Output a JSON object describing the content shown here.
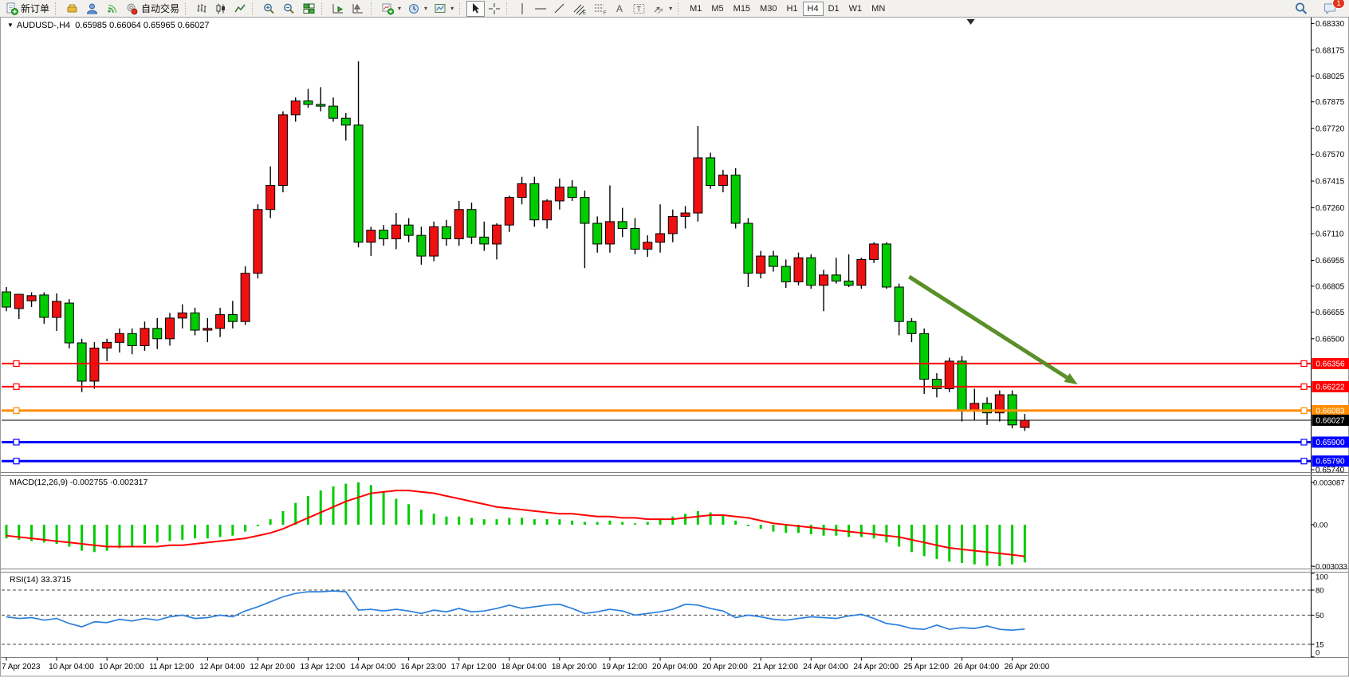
{
  "toolbar": {
    "new_order_label": "新订单",
    "autotrade_label": "自动交易",
    "timeframes": [
      "M1",
      "M5",
      "M15",
      "M30",
      "H1",
      "H4",
      "D1",
      "W1",
      "MN"
    ],
    "active_timeframe": "H4",
    "chat_badge": "1"
  },
  "window": {
    "symbol_period": "AUDUSD-,H4",
    "ohlc_text": "0.65985 0.66064 0.65965 0.66027"
  },
  "colors": {
    "bull": "#ee1111",
    "bear": "#00cc00",
    "wick": "#000000",
    "hline_red": "#ff0000",
    "hline_orange": "#ff8c00",
    "hline_blue": "#0000ff",
    "price_line": "#000000",
    "macd_hist": "#00cc00",
    "macd_signal": "#ff0000",
    "rsi_line": "#2a7fdc",
    "arrow": "#5a8f29",
    "toolbar_bg": "#f2f1ee",
    "panel_bg": "#ffffff"
  },
  "chart_data": {
    "type": "candlestick_with_indicators",
    "main": {
      "type": "candlestick",
      "convention": "red=bullish, green=bearish",
      "ohlc": [
        [
          0.66772,
          0.668,
          0.6666,
          0.66684
        ],
        [
          0.66675,
          0.6676,
          0.66615,
          0.66758
        ],
        [
          0.6672,
          0.6677,
          0.66684,
          0.6675
        ],
        [
          0.66754,
          0.6677,
          0.66587,
          0.66624
        ],
        [
          0.66624,
          0.66763,
          0.66545,
          0.66717
        ],
        [
          0.66707,
          0.6673,
          0.66444,
          0.66476
        ],
        [
          0.66476,
          0.665,
          0.6619,
          0.66254
        ],
        [
          0.66254,
          0.6648,
          0.6621,
          0.66446
        ],
        [
          0.66446,
          0.665,
          0.6637,
          0.66479
        ],
        [
          0.66479,
          0.6656,
          0.6642,
          0.6653
        ],
        [
          0.6653,
          0.6656,
          0.6641,
          0.6646
        ],
        [
          0.6646,
          0.666,
          0.6643,
          0.6656
        ],
        [
          0.6656,
          0.6662,
          0.6644,
          0.665
        ],
        [
          0.665,
          0.6665,
          0.6646,
          0.6662
        ],
        [
          0.6662,
          0.667,
          0.6656,
          0.6665
        ],
        [
          0.6665,
          0.6668,
          0.6652,
          0.6655
        ],
        [
          0.6655,
          0.6662,
          0.6648,
          0.6656
        ],
        [
          0.6656,
          0.6668,
          0.6651,
          0.6664
        ],
        [
          0.6664,
          0.6672,
          0.6656,
          0.666
        ],
        [
          0.666,
          0.6692,
          0.6658,
          0.6688
        ],
        [
          0.6688,
          0.6728,
          0.6685,
          0.6725
        ],
        [
          0.6725,
          0.675,
          0.672,
          0.6739
        ],
        [
          0.6739,
          0.6782,
          0.6735,
          0.678
        ],
        [
          0.678,
          0.679,
          0.6776,
          0.6788
        ],
        [
          0.6788,
          0.6795,
          0.6784,
          0.6786
        ],
        [
          0.6786,
          0.6796,
          0.6782,
          0.6785
        ],
        [
          0.6785,
          0.679,
          0.6776,
          0.6778
        ],
        [
          0.6778,
          0.6781,
          0.6765,
          0.6774
        ],
        [
          0.6774,
          0.6811,
          0.6703,
          0.6706
        ],
        [
          0.6706,
          0.6715,
          0.6698,
          0.6713
        ],
        [
          0.6713,
          0.6716,
          0.6704,
          0.6708
        ],
        [
          0.6708,
          0.6723,
          0.6702,
          0.6716
        ],
        [
          0.6716,
          0.672,
          0.6706,
          0.671
        ],
        [
          0.671,
          0.6715,
          0.6693,
          0.6698
        ],
        [
          0.6698,
          0.6718,
          0.6695,
          0.6715
        ],
        [
          0.6715,
          0.6719,
          0.6704,
          0.6708
        ],
        [
          0.6708,
          0.673,
          0.6704,
          0.6725
        ],
        [
          0.6725,
          0.6729,
          0.6705,
          0.6709
        ],
        [
          0.6709,
          0.6718,
          0.6701,
          0.6705
        ],
        [
          0.6705,
          0.6717,
          0.6696,
          0.6716
        ],
        [
          0.6716,
          0.6733,
          0.6712,
          0.6732
        ],
        [
          0.6732,
          0.6744,
          0.6728,
          0.674
        ],
        [
          0.674,
          0.6744,
          0.6715,
          0.6719
        ],
        [
          0.6719,
          0.6731,
          0.6714,
          0.673
        ],
        [
          0.673,
          0.6743,
          0.6725,
          0.6738
        ],
        [
          0.6738,
          0.6742,
          0.673,
          0.6732
        ],
        [
          0.6732,
          0.6736,
          0.6691,
          0.6717
        ],
        [
          0.6717,
          0.6721,
          0.67,
          0.6705
        ],
        [
          0.6705,
          0.6739,
          0.67,
          0.6718
        ],
        [
          0.6718,
          0.6726,
          0.6709,
          0.6714
        ],
        [
          0.6714,
          0.672,
          0.6699,
          0.6702
        ],
        [
          0.6702,
          0.671,
          0.66975,
          0.6706
        ],
        [
          0.6706,
          0.6728,
          0.67,
          0.6711
        ],
        [
          0.6711,
          0.6725,
          0.6706,
          0.6721
        ],
        [
          0.6721,
          0.6727,
          0.6714,
          0.6723
        ],
        [
          0.6723,
          0.67735,
          0.6718,
          0.6755
        ],
        [
          0.6755,
          0.6758,
          0.6737,
          0.6739
        ],
        [
          0.6739,
          0.6748,
          0.6735,
          0.6745
        ],
        [
          0.6745,
          0.6749,
          0.6714,
          0.6717
        ],
        [
          0.6717,
          0.672,
          0.668,
          0.6688
        ],
        [
          0.6688,
          0.6701,
          0.6685,
          0.6698
        ],
        [
          0.6698,
          0.6701,
          0.6689,
          0.6692
        ],
        [
          0.6692,
          0.6696,
          0.66795,
          0.6683
        ],
        [
          0.6683,
          0.67,
          0.6681,
          0.6697
        ],
        [
          0.6697,
          0.6699,
          0.6679,
          0.6681
        ],
        [
          0.6681,
          0.669,
          0.6666,
          0.6687
        ],
        [
          0.6687,
          0.6697,
          0.6682,
          0.66835
        ],
        [
          0.66835,
          0.6699,
          0.668,
          0.6681
        ],
        [
          0.6681,
          0.6697,
          0.6679,
          0.6696
        ],
        [
          0.6696,
          0.6706,
          0.6694,
          0.6705
        ],
        [
          0.6705,
          0.6706,
          0.6679,
          0.668
        ],
        [
          0.668,
          0.6682,
          0.6652,
          0.666
        ],
        [
          0.666,
          0.6662,
          0.6648,
          0.6653
        ],
        [
          0.6653,
          0.6656,
          0.6618,
          0.66265
        ],
        [
          0.66265,
          0.663,
          0.6616,
          0.6621
        ],
        [
          0.6621,
          0.6639,
          0.6619,
          0.6637
        ],
        [
          0.6637,
          0.664,
          0.6602,
          0.6608
        ],
        [
          0.6608,
          0.6621,
          0.6603,
          0.66125
        ],
        [
          0.66125,
          0.6616,
          0.66,
          0.6607
        ],
        [
          0.6607,
          0.662,
          0.6602,
          0.66175
        ],
        [
          0.66175,
          0.662,
          0.6598,
          0.66
        ],
        [
          0.65985,
          0.66064,
          0.65965,
          0.66027
        ]
      ],
      "y_ticks": [
        "0.68330",
        "0.68175",
        "0.68025",
        "0.67875",
        "0.67720",
        "0.67570",
        "0.67415",
        "0.67260",
        "0.67110",
        "0.66955",
        "0.66805",
        "0.66655",
        "0.66500",
        "0.65740"
      ],
      "hlines": [
        {
          "price": 0.66356,
          "label": "0.66356",
          "color": "#ff0000",
          "width": 2,
          "handles": true
        },
        {
          "price": 0.66222,
          "label": "0.66222",
          "color": "#ff0000",
          "width": 2,
          "handles": true
        },
        {
          "price": 0.66083,
          "label": "0.66083",
          "color": "#ff8c00",
          "width": 3,
          "handles": true
        },
        {
          "price": 0.66027,
          "label": "0.66027",
          "color": "#000000",
          "width": 1,
          "handles": false
        },
        {
          "price": 0.659,
          "label": "0.65900",
          "color": "#0000ff",
          "width": 3,
          "handles": true
        },
        {
          "price": 0.6579,
          "label": "0.65790",
          "color": "#0000ff",
          "width": 3,
          "handles": true
        }
      ],
      "arrow": {
        "from_bar": 71.8,
        "from_price": 0.6686,
        "to_bar": 85.2,
        "to_price": 0.66235,
        "color": "#5a8f29"
      },
      "shift_marker_bar": 76.7,
      "x_labels": [
        "7 Apr 2023",
        "10 Apr 04:00",
        "10 Apr 20:00",
        "11 Apr 12:00",
        "12 Apr 04:00",
        "12 Apr 20:00",
        "13 Apr 12:00",
        "14 Apr 04:00",
        "16 Apr 23:00",
        "17 Apr 12:00",
        "18 Apr 04:00",
        "18 Apr 20:00",
        "19 Apr 12:00",
        "20 Apr 04:00",
        "20 Apr 20:00",
        "21 Apr 12:00",
        "24 Apr 04:00",
        "24 Apr 20:00",
        "25 Apr 12:00",
        "26 Apr 04:00",
        "26 Apr 20:00"
      ],
      "label_every_n_bars": 4
    },
    "macd": {
      "label": "MACD(12,26,9) -0.002755 -0.002317",
      "current_macd": "-0.002755",
      "current_signal": "-0.002317",
      "y_ticks": [
        {
          "label": "0.003087",
          "value": 0.003087
        },
        {
          "label": "0.00",
          "value": 0
        },
        {
          "label": "-0.003033",
          "value": -0.003033
        }
      ],
      "values": [
        -0.001,
        -0.0011,
        -0.0012,
        -0.0013,
        -0.0014,
        -0.0016,
        -0.0019,
        -0.002,
        -0.0019,
        -0.0017,
        -0.0016,
        -0.0014,
        -0.0013,
        -0.0012,
        -0.0011,
        -0.001,
        -0.001,
        -0.0009,
        -0.0008,
        -0.0005,
        -0.0001,
        0.0004,
        0.001,
        0.0016,
        0.0021,
        0.0025,
        0.0028,
        0.003,
        0.0031,
        0.0029,
        0.0024,
        0.0019,
        0.0015,
        0.0011,
        0.0008,
        0.0006,
        0.0006,
        0.0005,
        0.0004,
        0.0004,
        0.0005,
        0.0005,
        0.0004,
        0.0004,
        0.0004,
        0.0003,
        0.0002,
        0.0002,
        0.0003,
        0.0002,
        0.0001,
        0.0002,
        0.0004,
        0.0006,
        0.0008,
        0.001,
        0.0009,
        0.0007,
        0.0003,
        -0.0001,
        -0.0003,
        -0.0005,
        -0.0006,
        -0.0006,
        -0.0007,
        -0.0008,
        -0.0008,
        -0.0009,
        -0.0009,
        -0.001,
        -0.0013,
        -0.0016,
        -0.002,
        -0.0023,
        -0.0025,
        -0.0027,
        -0.0028,
        -0.0029,
        -0.003,
        -0.003033,
        -0.0029,
        -0.002755
      ],
      "signal": [
        -0.0008,
        -0.0009,
        -0.001,
        -0.0011,
        -0.0012,
        -0.0013,
        -0.0014,
        -0.0015,
        -0.0016,
        -0.0016,
        -0.0016,
        -0.0016,
        -0.0016,
        -0.0015,
        -0.0015,
        -0.0014,
        -0.0013,
        -0.0012,
        -0.0011,
        -0.001,
        -0.0008,
        -0.0006,
        -0.0003,
        0.0001,
        0.0005,
        0.0009,
        0.0013,
        0.0017,
        0.002,
        0.0023,
        0.0024,
        0.0025,
        0.0025,
        0.0024,
        0.0023,
        0.0021,
        0.0019,
        0.0017,
        0.0015,
        0.0013,
        0.0012,
        0.0011,
        0.001,
        0.0009,
        0.0008,
        0.0008,
        0.0007,
        0.0006,
        0.0006,
        0.0005,
        0.0005,
        0.0004,
        0.0004,
        0.0004,
        0.0005,
        0.0006,
        0.0007,
        0.0007,
        0.0006,
        0.0005,
        0.0003,
        0.0001,
        0.0,
        -0.0001,
        -0.0002,
        -0.0003,
        -0.0004,
        -0.0005,
        -0.0006,
        -0.0007,
        -0.0008,
        -0.0009,
        -0.0011,
        -0.0013,
        -0.0015,
        -0.0017,
        -0.0018,
        -0.0019,
        -0.002,
        -0.0021,
        -0.0022,
        -0.002317
      ]
    },
    "rsi": {
      "label": "RSI(14) 33.3715",
      "current": "33.3715",
      "levels": [
        80,
        50,
        15
      ],
      "y_ticks": [
        {
          "label": "100",
          "value": 100
        },
        {
          "label": "80",
          "value": 80
        },
        {
          "label": "50",
          "value": 50
        },
        {
          "label": "15",
          "value": 15
        },
        {
          "label": "0",
          "value": 0
        }
      ],
      "values": [
        48,
        46,
        47,
        44,
        46,
        40,
        36,
        42,
        41,
        45,
        43,
        46,
        44,
        48,
        50,
        46,
        47,
        50,
        48,
        55,
        60,
        66,
        72,
        76,
        78,
        78,
        79,
        78,
        56,
        57,
        55,
        57,
        55,
        52,
        56,
        54,
        58,
        54,
        55,
        58,
        62,
        58,
        60,
        62,
        63,
        58,
        52,
        54,
        57,
        55,
        50,
        52,
        54,
        57,
        63,
        62,
        58,
        55,
        47,
        50,
        48,
        45,
        44,
        46,
        48,
        47,
        46,
        49,
        51,
        46,
        40,
        38,
        34,
        33,
        38,
        33,
        35,
        34,
        37,
        33,
        32,
        33.37
      ]
    }
  }
}
